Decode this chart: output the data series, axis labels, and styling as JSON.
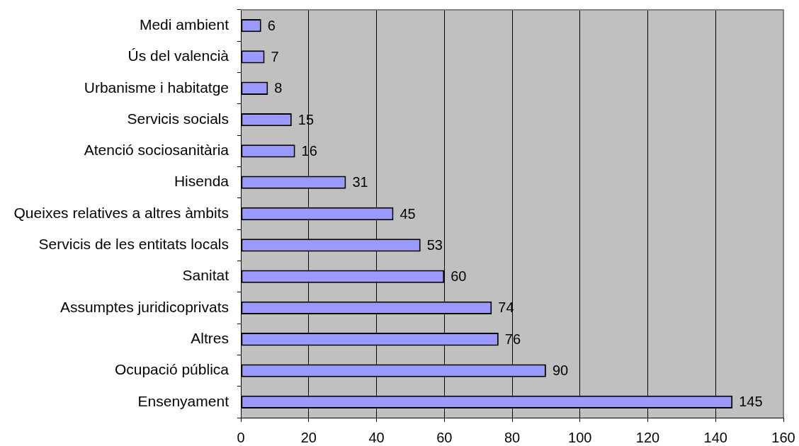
{
  "chart_data": {
    "type": "bar",
    "orientation": "horizontal",
    "categories": [
      "Medi ambient",
      "Ús del valencià",
      "Urbanisme i habitatge",
      "Servicis socials",
      "Atenció sociosanitària",
      "Hisenda",
      "Queixes relatives a altres àmbits",
      "Servicis de les entitats locals",
      "Sanitat",
      "Assumptes juridicoprivats",
      "Altres",
      "Ocupació pública",
      "Ensenyament"
    ],
    "values": [
      6,
      7,
      8,
      15,
      16,
      31,
      45,
      53,
      60,
      74,
      76,
      90,
      145
    ],
    "color": "#9999ff",
    "xlim": [
      0,
      160
    ],
    "xticks": [
      0,
      20,
      40,
      60,
      80,
      100,
      120,
      140,
      160
    ],
    "grid": "x",
    "data_labels": true
  }
}
